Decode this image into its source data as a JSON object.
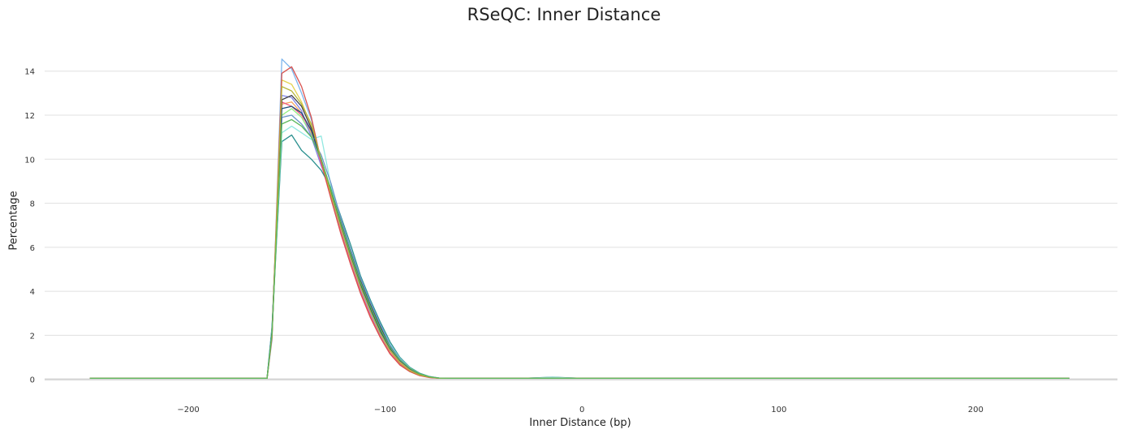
{
  "chart_data": {
    "type": "line",
    "title": "RSeQC: Inner Distance",
    "xlabel": "Inner Distance (bp)",
    "ylabel": "Percentage",
    "xlim": [
      -273,
      272
    ],
    "ylim": [
      -0.6,
      15.5
    ],
    "xticks": [
      -200,
      -100,
      0,
      100,
      200
    ],
    "xtick_labels": [
      "−200",
      "−100",
      "0",
      "100",
      "200"
    ],
    "yticks": [
      0,
      2,
      4,
      6,
      8,
      10,
      12,
      14
    ],
    "grid": "horizontal",
    "legend": "none",
    "base_x": [
      -250,
      -160,
      -157.5,
      -152.5,
      -147.5,
      -142.5,
      -137.5,
      -132.5,
      -127.5,
      -122.5,
      -117.5,
      -112.5,
      -107.5,
      -102.5,
      -97.5,
      -92.5,
      -87.5,
      -82.5,
      -77.5,
      -72.5,
      -67.5,
      -62.5,
      -57.5,
      -52.5,
      -42.5,
      -30,
      -15,
      0,
      50,
      150,
      247.5
    ],
    "series": [
      {
        "color": "#7cb5ec",
        "values": [
          0.05,
          0.05,
          1.8,
          14.55,
          14.1,
          13.0,
          11.8,
          9.9,
          8.3,
          6.8,
          5.4,
          4.1,
          3.0,
          2.0,
          1.2,
          0.7,
          0.4,
          0.2,
          0.1,
          0.05,
          0.05,
          0.05,
          0.05,
          0.05,
          0.05,
          0.05,
          0.05,
          0.05,
          0.05,
          0.05,
          0.05
        ]
      },
      {
        "color": "#e4d354",
        "values": [
          0.05,
          0.05,
          2.0,
          13.6,
          13.4,
          12.6,
          11.5,
          9.9,
          8.4,
          6.9,
          5.5,
          4.2,
          3.1,
          2.1,
          1.3,
          0.75,
          0.4,
          0.2,
          0.1,
          0.05,
          0.05,
          0.05,
          0.05,
          0.05,
          0.05,
          0.05,
          0.05,
          0.05,
          0.05,
          0.05,
          0.05
        ]
      },
      {
        "color": "#f7a35c",
        "values": [
          0.05,
          0.05,
          2.2,
          12.5,
          12.6,
          12.1,
          11.2,
          9.9,
          8.5,
          7.0,
          5.6,
          4.3,
          3.2,
          2.2,
          1.35,
          0.8,
          0.45,
          0.22,
          0.1,
          0.05,
          0.05,
          0.05,
          0.05,
          0.05,
          0.05,
          0.05,
          0.05,
          0.05,
          0.05,
          0.05,
          0.05
        ]
      },
      {
        "color": "#90ed7d",
        "values": [
          0.05,
          0.05,
          2.1,
          12.0,
          12.3,
          11.9,
          11.1,
          9.9,
          8.5,
          7.1,
          5.7,
          4.4,
          3.3,
          2.3,
          1.4,
          0.85,
          0.48,
          0.24,
          0.11,
          0.05,
          0.05,
          0.05,
          0.05,
          0.05,
          0.05,
          0.05,
          0.05,
          0.05,
          0.05,
          0.05,
          0.05
        ]
      },
      {
        "color": "#8085e9",
        "values": [
          0.05,
          0.05,
          2.3,
          12.9,
          12.8,
          12.2,
          11.0,
          9.7,
          8.6,
          7.2,
          5.8,
          4.5,
          3.4,
          2.35,
          1.45,
          0.85,
          0.48,
          0.24,
          0.11,
          0.05,
          0.05,
          0.05,
          0.05,
          0.05,
          0.05,
          0.05,
          0.05,
          0.05,
          0.05,
          0.05,
          0.05
        ]
      },
      {
        "color": "#f15c80",
        "values": [
          0.05,
          0.05,
          2.0,
          12.6,
          12.4,
          12.0,
          11.3,
          9.8,
          8.2,
          6.7,
          5.3,
          4.0,
          2.9,
          1.95,
          1.2,
          0.7,
          0.38,
          0.19,
          0.09,
          0.05,
          0.05,
          0.05,
          0.05,
          0.05,
          0.05,
          0.05,
          0.05,
          0.05,
          0.05,
          0.05,
          0.05
        ]
      },
      {
        "color": "#434348",
        "values": [
          0.05,
          0.05,
          2.2,
          12.7,
          12.9,
          12.4,
          11.4,
          10.0,
          8.6,
          7.2,
          5.8,
          4.5,
          3.4,
          2.4,
          1.5,
          0.9,
          0.5,
          0.25,
          0.12,
          0.06,
          0.05,
          0.05,
          0.05,
          0.05,
          0.05,
          0.05,
          0.05,
          0.05,
          0.05,
          0.05,
          0.05
        ]
      },
      {
        "color": "#2b908f",
        "values": [
          0.05,
          0.05,
          2.4,
          10.8,
          11.1,
          10.4,
          10.0,
          9.5,
          8.7,
          7.4,
          6.1,
          4.7,
          3.6,
          2.6,
          1.7,
          1.0,
          0.55,
          0.28,
          0.13,
          0.06,
          0.05,
          0.05,
          0.05,
          0.05,
          0.05,
          0.05,
          0.1,
          0.05,
          0.05,
          0.05,
          0.05
        ]
      },
      {
        "color": "#91e8e1",
        "values": [
          0.05,
          0.05,
          2.3,
          11.2,
          11.5,
          11.2,
          10.9,
          11.05,
          8.8,
          7.3,
          5.9,
          4.6,
          3.5,
          2.5,
          1.6,
          0.95,
          0.52,
          0.26,
          0.12,
          0.06,
          0.05,
          0.05,
          0.05,
          0.05,
          0.05,
          0.05,
          0.09,
          0.05,
          0.05,
          0.05,
          0.05
        ]
      },
      {
        "color": "#6a96c8",
        "values": [
          0.05,
          0.05,
          2.1,
          11.9,
          12.0,
          11.6,
          11.0,
          10.2,
          8.9,
          7.3,
          5.9,
          4.6,
          3.5,
          2.5,
          1.55,
          0.92,
          0.5,
          0.25,
          0.12,
          0.06,
          0.05,
          0.05,
          0.05,
          0.05,
          0.05,
          0.05,
          0.05,
          0.05,
          0.05,
          0.05,
          0.05
        ]
      },
      {
        "color": "#1f4e79",
        "values": [
          0.05,
          0.05,
          2.2,
          12.3,
          12.4,
          12.1,
          11.3,
          10.0,
          8.5,
          7.0,
          5.6,
          4.3,
          3.2,
          2.2,
          1.4,
          0.85,
          0.48,
          0.24,
          0.11,
          0.05,
          0.05,
          0.05,
          0.05,
          0.05,
          0.05,
          0.05,
          0.05,
          0.05,
          0.05,
          0.05,
          0.05
        ]
      },
      {
        "color": "#d9534f",
        "values": [
          0.05,
          0.05,
          1.9,
          13.9,
          14.2,
          13.3,
          11.9,
          9.9,
          8.2,
          6.6,
          5.2,
          3.9,
          2.8,
          1.9,
          1.15,
          0.65,
          0.35,
          0.17,
          0.08,
          0.05,
          0.05,
          0.05,
          0.05,
          0.05,
          0.05,
          0.05,
          0.05,
          0.05,
          0.05,
          0.05,
          0.05
        ]
      },
      {
        "color": "#b5b53a",
        "values": [
          0.05,
          0.05,
          2.0,
          13.3,
          13.1,
          12.5,
          11.6,
          10.0,
          8.4,
          6.9,
          5.5,
          4.2,
          3.1,
          2.1,
          1.3,
          0.75,
          0.4,
          0.2,
          0.1,
          0.05,
          0.05,
          0.05,
          0.05,
          0.05,
          0.05,
          0.05,
          0.05,
          0.05,
          0.05,
          0.05,
          0.05
        ]
      },
      {
        "color": "#5cb85c",
        "values": [
          0.05,
          0.05,
          2.1,
          11.6,
          11.8,
          11.5,
          11.0,
          10.0,
          8.6,
          7.1,
          5.7,
          4.4,
          3.3,
          2.3,
          1.45,
          0.88,
          0.5,
          0.25,
          0.12,
          0.06,
          0.05,
          0.05,
          0.05,
          0.05,
          0.05,
          0.05,
          0.05,
          0.05,
          0.05,
          0.05,
          0.05
        ]
      }
    ]
  }
}
